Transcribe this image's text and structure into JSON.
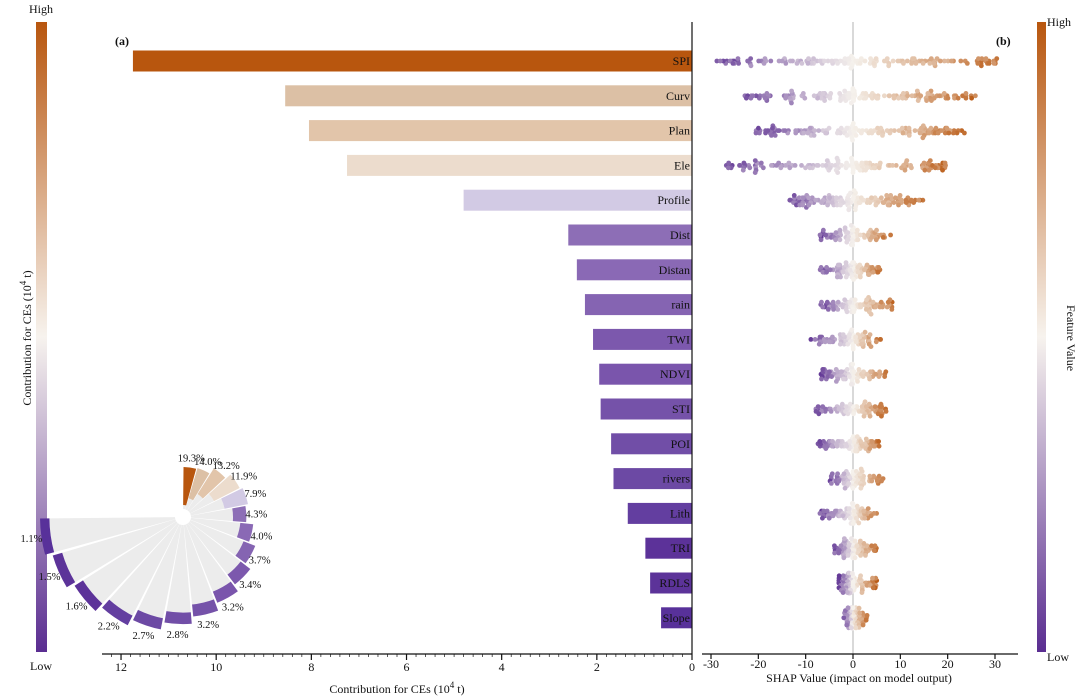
{
  "colorbar_left": {
    "high_label": "High",
    "low_label": "Low",
    "axis_label_main": "Contribution for CEs (10",
    "axis_label_exp": "4",
    "axis_label_unit": " t)"
  },
  "colorbar_right": {
    "high_label": "High",
    "low_label": "Low",
    "axis_label": "Feature Value"
  },
  "palette": {
    "high": "#b8560e",
    "mid": "#f7f3ee",
    "low": "#5a2d91"
  },
  "chart_data": [
    {
      "id": "a",
      "type": "bar",
      "panel_label": "(a)",
      "orientation": "horizontal",
      "x_reversed": true,
      "xlabel_main": "Contribution for CEs (10",
      "xlabel_exp": "4",
      "xlabel_unit": " t)",
      "xlim": [
        0,
        12.4
      ],
      "xticks": [
        12,
        10,
        8,
        6,
        4,
        2,
        0
      ],
      "categories": [
        "SPI",
        "Curv",
        "Plan",
        "Ele",
        "Profile",
        "Dist",
        "Distan",
        "rain",
        "TWI",
        "NDVI",
        "STI",
        "POI",
        "rivers",
        "Lith",
        "TRI",
        "RDLS",
        "Slope"
      ],
      "values": [
        11.75,
        8.55,
        8.05,
        7.25,
        4.8,
        2.6,
        2.42,
        2.25,
        2.08,
        1.95,
        1.92,
        1.7,
        1.65,
        1.35,
        0.98,
        0.88,
        0.65
      ],
      "colors": [
        "#b8560e",
        "#dcc0a5",
        "#e2c5aa",
        "#ecdccd",
        "#d2cae4",
        "#8d6eb6",
        "#8a69b5",
        "#8564b2",
        "#7c58ad",
        "#7a55ac",
        "#7552a9",
        "#714ea7",
        "#6c49a4",
        "#633ea0",
        "#5c3299",
        "#5c3399",
        "#58319a"
      ]
    },
    {
      "id": "a-inset",
      "type": "pie",
      "subtype": "radial-bar",
      "labels": [
        "19.3%",
        "14.0%",
        "13.2%",
        "11.9%",
        "7.9%",
        "4.3%",
        "4.0%",
        "3.7%",
        "3.4%",
        "3.2%",
        "3.2%",
        "2.8%",
        "2.7%",
        "2.2%",
        "1.6%",
        "1.5%",
        "1.1%"
      ],
      "values": [
        19.3,
        14.0,
        13.2,
        11.9,
        7.9,
        4.3,
        4.0,
        3.7,
        3.4,
        3.2,
        3.2,
        2.8,
        2.7,
        2.2,
        1.6,
        1.5,
        1.1
      ],
      "colors": [
        "#b8560e",
        "#dcc0a5",
        "#e2c5aa",
        "#ecdccd",
        "#d2cae4",
        "#8d6eb6",
        "#8a69b5",
        "#8564b2",
        "#7c58ad",
        "#7a55ac",
        "#7552a9",
        "#714ea7",
        "#6c49a4",
        "#633ea0",
        "#5c3299",
        "#5c3399",
        "#58319a"
      ]
    },
    {
      "id": "b",
      "type": "scatter",
      "subtype": "beeswarm",
      "panel_label": "(b)",
      "xlabel": "SHAP Value (impact on model output)",
      "xlim": [
        -31,
        35
      ],
      "xticks": [
        -30,
        -20,
        -10,
        0,
        10,
        20,
        30
      ],
      "features": [
        "SPI",
        "Curv",
        "Plan",
        "Ele",
        "Profile",
        "Dist",
        "Distan",
        "rain",
        "TWI",
        "NDVI",
        "STI",
        "POI",
        "rivers",
        "Lith",
        "TRI",
        "RDLS",
        "Slope"
      ],
      "ranges": [
        [
          -29,
          32
        ],
        [
          -23,
          26
        ],
        [
          -21,
          24
        ],
        [
          -27,
          20
        ],
        [
          -14,
          15
        ],
        [
          -7,
          8
        ],
        [
          -7,
          6
        ],
        [
          -7,
          9
        ],
        [
          -9,
          6
        ],
        [
          -7,
          8
        ],
        [
          -8,
          7
        ],
        [
          -8,
          6
        ],
        [
          -5,
          7
        ],
        [
          -7,
          5
        ],
        [
          -4,
          5
        ],
        [
          -3,
          5
        ],
        [
          -2,
          3
        ]
      ],
      "samples_per_feature": 140,
      "color_low": "#5a2d91",
      "color_mid": "#f5f1ec",
      "color_high": "#b8560e"
    }
  ]
}
